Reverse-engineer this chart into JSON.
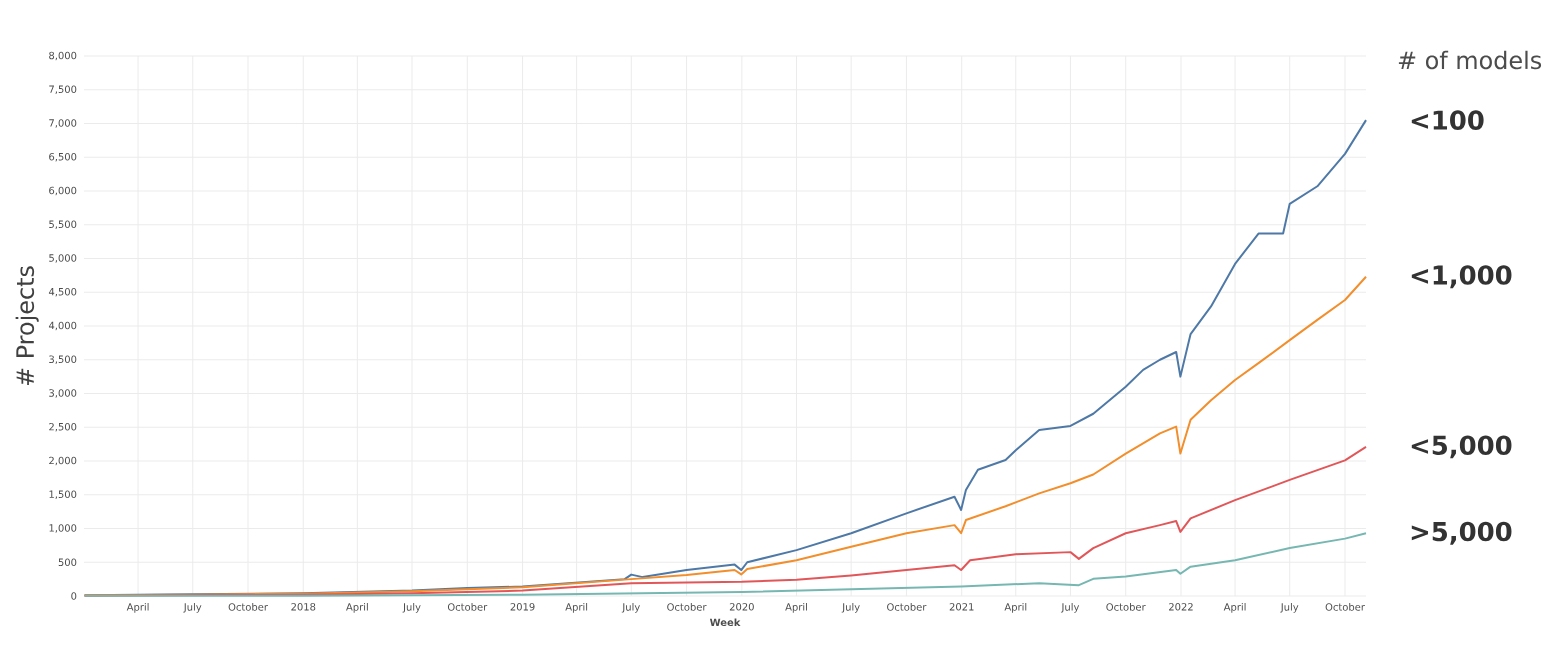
{
  "chart_data": {
    "type": "line",
    "xlabel": "Week",
    "ylabel": "# Projects",
    "legend_title": "# of models",
    "xlim": [
      "2017-01-01",
      "2022-11-05"
    ],
    "ylim": [
      0,
      8000
    ],
    "xticks": [
      {
        "value": "2017-04-01",
        "label": "April"
      },
      {
        "value": "2017-07-01",
        "label": "July"
      },
      {
        "value": "2017-10-01",
        "label": "October"
      },
      {
        "value": "2018-01-01",
        "label": "2018"
      },
      {
        "value": "2018-04-01",
        "label": "April"
      },
      {
        "value": "2018-07-01",
        "label": "July"
      },
      {
        "value": "2018-10-01",
        "label": "October"
      },
      {
        "value": "2019-01-01",
        "label": "2019"
      },
      {
        "value": "2019-04-01",
        "label": "April"
      },
      {
        "value": "2019-07-01",
        "label": "July"
      },
      {
        "value": "2019-10-01",
        "label": "October"
      },
      {
        "value": "2020-01-01",
        "label": "2020"
      },
      {
        "value": "2020-04-01",
        "label": "April"
      },
      {
        "value": "2020-07-01",
        "label": "July"
      },
      {
        "value": "2020-10-01",
        "label": "October"
      },
      {
        "value": "2021-01-01",
        "label": "2021"
      },
      {
        "value": "2021-04-01",
        "label": "April"
      },
      {
        "value": "2021-07-01",
        "label": "July"
      },
      {
        "value": "2021-10-01",
        "label": "October"
      },
      {
        "value": "2022-01-01",
        "label": "2022"
      },
      {
        "value": "2022-04-01",
        "label": "April"
      },
      {
        "value": "2022-07-01",
        "label": "July"
      },
      {
        "value": "2022-10-01",
        "label": "October"
      }
    ],
    "yticks": [
      0,
      500,
      {
        "value": 1000,
        "label": "1,000"
      },
      {
        "value": 1500,
        "label": "1,500"
      },
      {
        "value": 2000,
        "label": "2,000"
      },
      {
        "value": 2500,
        "label": "2,500"
      },
      {
        "value": 3000,
        "label": "3,000"
      },
      {
        "value": 3500,
        "label": "3,500"
      },
      {
        "value": 4000,
        "label": "4,000"
      },
      {
        "value": 4500,
        "label": "4,500"
      },
      {
        "value": 5000,
        "label": "5,000"
      },
      {
        "value": 5500,
        "label": "5,500"
      },
      {
        "value": 6000,
        "label": "6,000"
      },
      {
        "value": 6500,
        "label": "6,500"
      },
      {
        "value": 7000,
        "label": "7,000"
      },
      {
        "value": 7500,
        "label": "7,500"
      },
      {
        "value": 8000,
        "label": "8,000"
      }
    ],
    "grid": true,
    "series": [
      {
        "name": "<100",
        "color": "#4e79a7",
        "x": [
          "2017-01-02",
          "2017-07-01",
          "2018-01-01",
          "2018-07-01",
          "2018-10-01",
          "2019-01-01",
          "2019-06-20",
          "2019-07-01",
          "2019-07-20",
          "2019-10-01",
          "2019-12-20",
          "2019-12-31",
          "2020-01-10",
          "2020-04-01",
          "2020-07-01",
          "2020-10-01",
          "2020-12-20",
          "2020-12-31",
          "2021-01-08",
          "2021-01-28",
          "2021-03-15",
          "2021-04-01",
          "2021-05-10",
          "2021-07-01",
          "2021-08-08",
          "2021-10-01",
          "2021-10-30",
          "2021-11-27",
          "2021-12-24",
          "2021-12-31",
          "2022-01-17",
          "2022-02-20",
          "2022-04-01",
          "2022-05-10",
          "2022-06-20",
          "2022-07-01",
          "2022-08-16",
          "2022-10-01",
          "2022-11-05"
        ],
        "values": [
          10,
          25,
          40,
          80,
          120,
          140,
          250,
          317,
          280,
          385,
          465,
          385,
          500,
          680,
          930,
          1225,
          1470,
          1275,
          1570,
          1870,
          2015,
          2160,
          2460,
          2520,
          2700,
          3100,
          3350,
          3500,
          3615,
          3250,
          3880,
          4290,
          4920,
          5370,
          5370,
          5810,
          6070,
          6550,
          7050
        ]
      },
      {
        "name": "<1,000",
        "color": "#f28e2b",
        "x": [
          "2017-01-02",
          "2017-07-01",
          "2018-01-01",
          "2018-07-01",
          "2018-10-01",
          "2019-01-01",
          "2019-07-01",
          "2019-10-01",
          "2019-12-20",
          "2019-12-31",
          "2020-01-10",
          "2020-04-01",
          "2020-07-01",
          "2020-10-01",
          "2020-12-20",
          "2020-12-31",
          "2021-01-08",
          "2021-03-15",
          "2021-05-10",
          "2021-07-01",
          "2021-08-08",
          "2021-10-01",
          "2021-11-27",
          "2021-12-24",
          "2021-12-31",
          "2022-01-17",
          "2022-02-20",
          "2022-04-01",
          "2022-05-10",
          "2022-07-01",
          "2022-08-16",
          "2022-10-01",
          "2022-11-05"
        ],
        "values": [
          10,
          20,
          35,
          70,
          100,
          130,
          250,
          310,
          385,
          320,
          400,
          530,
          730,
          930,
          1050,
          930,
          1125,
          1330,
          1520,
          1670,
          1800,
          2110,
          2410,
          2510,
          2110,
          2610,
          2900,
          3200,
          3450,
          3790,
          4090,
          4385,
          4730
        ]
      },
      {
        "name": "<5,000",
        "color": "#e15759",
        "x": [
          "2017-01-02",
          "2018-01-01",
          "2018-07-01",
          "2019-01-01",
          "2019-07-01",
          "2020-01-01",
          "2020-04-01",
          "2020-07-01",
          "2020-10-01",
          "2020-12-20",
          "2020-12-31",
          "2021-01-15",
          "2021-04-01",
          "2021-07-01",
          "2021-07-15",
          "2021-08-08",
          "2021-10-01",
          "2021-11-27",
          "2021-12-24",
          "2021-12-31",
          "2022-01-17",
          "2022-04-01",
          "2022-07-01",
          "2022-10-01",
          "2022-11-05"
        ],
        "values": [
          5,
          20,
          40,
          80,
          190,
          210,
          240,
          305,
          385,
          455,
          385,
          530,
          620,
          650,
          550,
          710,
          930,
          1050,
          1110,
          950,
          1150,
          1420,
          1720,
          2010,
          2210
        ]
      },
      {
        "name": ">5,000",
        "color": "#76b7b2",
        "x": [
          "2017-01-02",
          "2018-01-01",
          "2019-01-01",
          "2020-01-01",
          "2020-07-01",
          "2020-12-31",
          "2021-05-10",
          "2021-07-15",
          "2021-08-08",
          "2021-10-01",
          "2021-12-24",
          "2021-12-31",
          "2022-01-17",
          "2022-04-01",
          "2022-07-01",
          "2022-10-01",
          "2022-11-05"
        ],
        "values": [
          2,
          5,
          20,
          60,
          100,
          140,
          190,
          160,
          255,
          290,
          385,
          330,
          435,
          530,
          710,
          850,
          930
        ]
      }
    ]
  }
}
